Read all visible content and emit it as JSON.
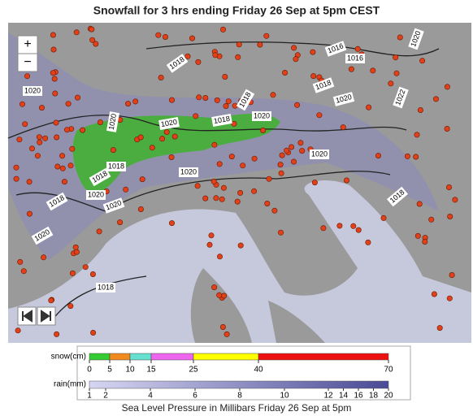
{
  "title": "Snowfall for 3 hrs ending Friday 26 Sep at 5pm CEST",
  "controls": {
    "zoom_in": "+",
    "zoom_out": "−"
  },
  "isobars": [
    1020,
    1016,
    1016,
    1018,
    1020,
    1018,
    1018,
    1020,
    1022,
    1020,
    1020,
    1018,
    1020,
    1018,
    1020,
    1020,
    1018,
    1020,
    1020,
    1018,
    1020,
    1018,
    1018
  ],
  "legend": {
    "snow": {
      "label": "snow(cm)",
      "ticks": [
        0,
        5,
        10,
        15,
        25,
        40,
        70
      ],
      "colors": [
        "#33cc33",
        "#f08a1e",
        "#66e0d0",
        "#ee66ee",
        "#ffff00",
        "#ee1111"
      ]
    },
    "rain": {
      "label": "rain(mm)",
      "ticks": [
        1,
        2,
        4,
        6,
        8,
        10,
        12,
        14,
        16,
        18,
        20
      ]
    }
  },
  "caption": "Sea Level Pressure in Millibars Friday 26 Sep at 5pm"
}
